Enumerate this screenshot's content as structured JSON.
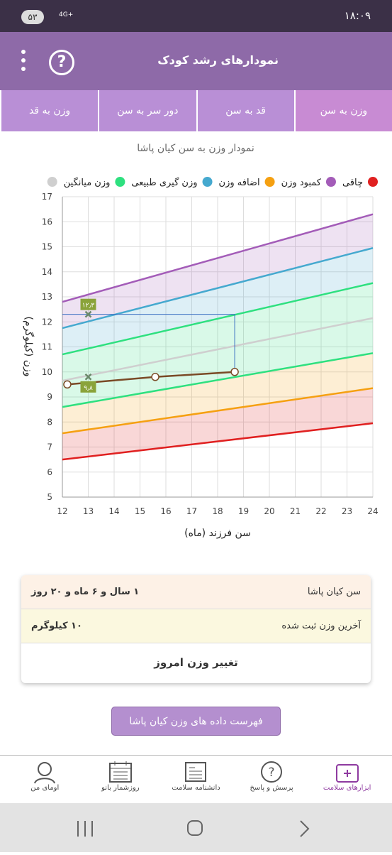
{
  "status_bar": {
    "time": "۱۸:۰۹",
    "badge": "۵۳",
    "network": "4G+"
  },
  "header": {
    "title": "نمودارهای رشد کودک",
    "help": "?"
  },
  "tabs": [
    "وزن به سن",
    "قد به سن",
    "دور سر به سن",
    "وزن به قد"
  ],
  "chart_data": {
    "type": "line",
    "title": "نمودار وزن به سن کیان پاشا",
    "x_label": "سن فرزند (ماه)",
    "y_label": "وزن (کیلوگرم)",
    "x": [
      12,
      24
    ],
    "series": [
      {
        "color": "#e02020",
        "values": [
          6.5,
          7.95
        ]
      },
      {
        "name": "چاقی",
        "color": "#a35cb8",
        "values": [
          12.8,
          16.3
        ]
      },
      {
        "name": "کمبود وزن",
        "color": "#f5a011",
        "values": [
          7.55,
          9.35
        ]
      },
      {
        "name": "اضافه وزن",
        "color": "#45a9cf",
        "values": [
          11.75,
          14.95
        ]
      },
      {
        "name": "وزن گیری طبیعی",
        "color": "#2ee07f",
        "values": [
          10.7,
          13.55
        ]
      },
      {
        "name": "وزن میانگین",
        "color": "#cfcfcf",
        "values": [
          9.65,
          12.15
        ]
      },
      {
        "color": "#2ee07f",
        "values": [
          8.6,
          10.75
        ],
        "in_legend": false
      }
    ],
    "child": {
      "color": "#7a4a26",
      "x": [
        12.19,
        15.59,
        18.66
      ],
      "values": [
        9.5,
        9.8,
        10
      ]
    },
    "markers": {
      "x": [
        13,
        13
      ],
      "values": [
        12.3,
        9.8
      ],
      "value_labels": [
        "۱۲٫۳",
        "۹٫۸"
      ],
      "color": "#8aa33a"
    },
    "xlim": [
      12,
      24
    ],
    "xticks": [
      12,
      13,
      14,
      15,
      16,
      17,
      18,
      19,
      20,
      21,
      22,
      23,
      24
    ],
    "ylim": [
      5,
      17
    ],
    "yticks": [
      5,
      6,
      7,
      8,
      9,
      10,
      11,
      12,
      13,
      14,
      15,
      16,
      17
    ],
    "grid": true
  },
  "info": {
    "rows": [
      [
        "سن کیان پاشا",
        "۱ سال و ۶ ماه و ۲۰ روز"
      ],
      [
        "آخرین وزن ثبت شده",
        "۱۰ کیلوگرم"
      ]
    ],
    "action": "تغییر وزن امروز"
  },
  "button": "فهرست داده های وزن کیان پاشا",
  "nav": [
    "ابزارهای سلامت",
    "پرسش و پاسخ",
    "دانشنامه سلامت",
    "روزشمار بانو",
    "اومای من"
  ]
}
